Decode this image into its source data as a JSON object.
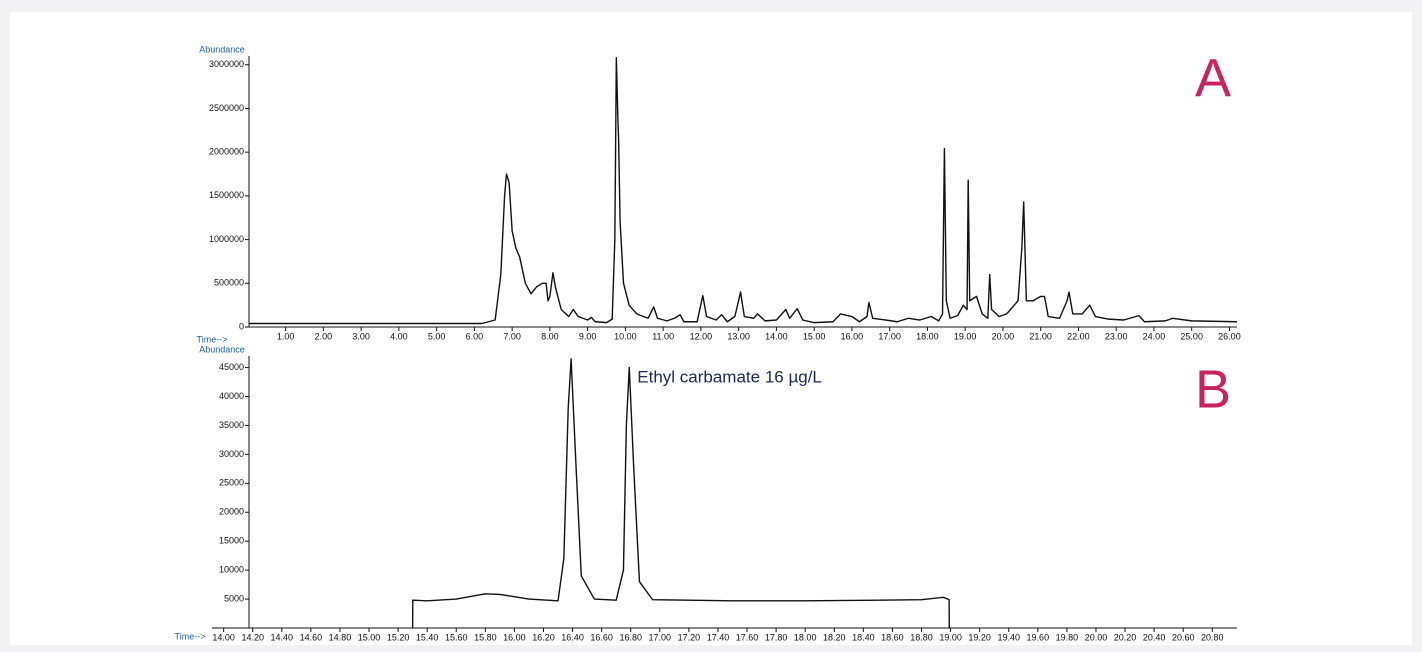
{
  "chart_data": [
    {
      "type": "line",
      "panel_label": "A",
      "y_axis_label": "Abundance",
      "x_axis_label": "Time-->",
      "color": "#111111",
      "xlim": [
        0.03,
        26.2
      ],
      "ylim": [
        0,
        3100000
      ],
      "yticks": [
        0,
        500000,
        1000000,
        1500000,
        2000000,
        2500000,
        3000000
      ],
      "xticks": [
        {
          "value": 1,
          "label": "1.00"
        },
        {
          "value": 2,
          "label": "2.00"
        },
        {
          "value": 3,
          "label": "3.00"
        },
        {
          "value": 4,
          "label": "4.00"
        },
        {
          "value": 5,
          "label": "5.00"
        },
        {
          "value": 6,
          "label": "6.00"
        },
        {
          "value": 7,
          "label": "7.00"
        },
        {
          "value": 8,
          "label": "8.00"
        },
        {
          "value": 9,
          "label": "9.00"
        },
        {
          "value": 10,
          "label": "10.00"
        },
        {
          "value": 11,
          "label": "11.00"
        },
        {
          "value": 12,
          "label": "12.00"
        },
        {
          "value": 13,
          "label": "13.00"
        },
        {
          "value": 14,
          "label": "14.00"
        },
        {
          "value": 15,
          "label": "15.00"
        },
        {
          "value": 16,
          "label": "16.00"
        },
        {
          "value": 17,
          "label": "17.00"
        },
        {
          "value": 18,
          "label": "18.00"
        },
        {
          "value": 19,
          "label": "19.00"
        },
        {
          "value": 20,
          "label": "20.00"
        },
        {
          "value": 21,
          "label": "21.00"
        },
        {
          "value": 22,
          "label": "22.00"
        },
        {
          "value": 23,
          "label": "23.00"
        },
        {
          "value": 24,
          "label": "24.00"
        },
        {
          "value": 25,
          "label": "25.00"
        },
        {
          "value": 26,
          "label": "26.00"
        }
      ],
      "x": [
        0.03,
        6.2,
        6.55,
        6.7,
        6.8,
        6.85,
        6.92,
        7.0,
        7.1,
        7.2,
        7.35,
        7.5,
        7.65,
        7.8,
        7.9,
        7.95,
        8.0,
        8.08,
        8.15,
        8.3,
        8.5,
        8.62,
        8.75,
        9.0,
        9.1,
        9.2,
        9.5,
        9.65,
        9.72,
        9.76,
        9.8,
        9.82,
        9.86,
        9.95,
        10.1,
        10.3,
        10.6,
        10.75,
        10.85,
        11.1,
        11.3,
        11.45,
        11.55,
        11.9,
        12.05,
        12.15,
        12.4,
        12.55,
        12.7,
        12.9,
        13.05,
        13.15,
        13.4,
        13.5,
        13.7,
        14.0,
        14.25,
        14.35,
        14.55,
        14.7,
        15.0,
        15.5,
        15.7,
        16.0,
        16.2,
        16.4,
        16.45,
        16.55,
        16.9,
        17.2,
        17.5,
        17.8,
        18.1,
        18.3,
        18.4,
        18.45,
        18.5,
        18.6,
        18.8,
        18.95,
        19.05,
        19.08,
        19.12,
        19.3,
        19.45,
        19.6,
        19.65,
        19.7,
        19.9,
        20.1,
        20.2,
        20.4,
        20.5,
        20.55,
        20.62,
        20.8,
        21.0,
        21.1,
        21.2,
        21.5,
        21.7,
        21.75,
        21.85,
        22.1,
        22.3,
        22.45,
        22.8,
        23.2,
        23.6,
        23.75,
        24.3,
        24.5,
        25.0,
        26.2
      ],
      "values": [
        40000,
        40000,
        80000,
        600000,
        1500000,
        1750000,
        1650000,
        1100000,
        900000,
        800000,
        500000,
        380000,
        460000,
        500000,
        500000,
        300000,
        350000,
        620000,
        450000,
        200000,
        120000,
        200000,
        120000,
        80000,
        110000,
        60000,
        50000,
        90000,
        1000000,
        3080000,
        2400000,
        2150000,
        1200000,
        500000,
        250000,
        150000,
        100000,
        230000,
        100000,
        70000,
        100000,
        140000,
        60000,
        60000,
        360000,
        120000,
        80000,
        140000,
        60000,
        120000,
        400000,
        120000,
        100000,
        150000,
        70000,
        80000,
        200000,
        100000,
        210000,
        80000,
        50000,
        60000,
        150000,
        120000,
        60000,
        120000,
        280000,
        100000,
        80000,
        60000,
        100000,
        80000,
        120000,
        70000,
        150000,
        2040000,
        300000,
        100000,
        130000,
        250000,
        200000,
        1680000,
        300000,
        350000,
        150000,
        100000,
        600000,
        200000,
        120000,
        150000,
        200000,
        300000,
        900000,
        1430000,
        300000,
        300000,
        350000,
        350000,
        120000,
        100000,
        300000,
        400000,
        150000,
        150000,
        250000,
        120000,
        90000,
        80000,
        130000,
        60000,
        70000,
        100000,
        70000,
        60000
      ]
    },
    {
      "type": "line",
      "panel_label": "B",
      "y_axis_label": "Abundance",
      "x_axis_label": "Time-->",
      "color": "#111111",
      "annotation": "Ethyl carbamate 16 µg/L",
      "xlim": [
        13.92,
        20.97
      ],
      "ylim": [
        0,
        47000
      ],
      "yticks": [
        5000,
        10000,
        15000,
        20000,
        25000,
        30000,
        35000,
        40000,
        45000
      ],
      "xticks": [
        {
          "value": 14,
          "label": "14.00"
        },
        {
          "value": 14.2,
          "label": "14.20"
        },
        {
          "value": 14.4,
          "label": "14.40"
        },
        {
          "value": 14.6,
          "label": "14.60"
        },
        {
          "value": 14.8,
          "label": "14.80"
        },
        {
          "value": 15,
          "label": "15.00"
        },
        {
          "value": 15.2,
          "label": "15.20"
        },
        {
          "value": 15.4,
          "label": "15.40"
        },
        {
          "value": 15.6,
          "label": "15.60"
        },
        {
          "value": 15.8,
          "label": "15.80"
        },
        {
          "value": 16,
          "label": "16.00"
        },
        {
          "value": 16.2,
          "label": "16.20"
        },
        {
          "value": 16.4,
          "label": "16.40"
        },
        {
          "value": 16.6,
          "label": "16.60"
        },
        {
          "value": 16.8,
          "label": "16.80"
        },
        {
          "value": 17,
          "label": "17.00"
        },
        {
          "value": 17.2,
          "label": "17.20"
        },
        {
          "value": 17.4,
          "label": "17.40"
        },
        {
          "value": 17.6,
          "label": "17.60"
        },
        {
          "value": 17.8,
          "label": "17.80"
        },
        {
          "value": 18,
          "label": "18.00"
        },
        {
          "value": 18.2,
          "label": "18.20"
        },
        {
          "value": 18.4,
          "label": "18.40"
        },
        {
          "value": 18.6,
          "label": "18.60"
        },
        {
          "value": 18.8,
          "label": "18.80"
        },
        {
          "value": 19,
          "label": "19.00"
        },
        {
          "value": 19.2,
          "label": "19.20"
        },
        {
          "value": 19.4,
          "label": "19.40"
        },
        {
          "value": 19.6,
          "label": "19.60"
        },
        {
          "value": 19.8,
          "label": "19.80"
        },
        {
          "value": 20,
          "label": "20.00"
        },
        {
          "value": 20.2,
          "label": "20.20"
        },
        {
          "value": 20.4,
          "label": "20.40"
        },
        {
          "value": 20.6,
          "label": "20.60"
        },
        {
          "value": 20.8,
          "label": "20.80"
        }
      ],
      "x": [
        15.3,
        15.301,
        15.4,
        15.6,
        15.8,
        15.9,
        16.1,
        16.3,
        16.34,
        16.37,
        16.39,
        16.42,
        16.46,
        16.55,
        16.7,
        16.75,
        16.77,
        16.79,
        16.82,
        16.86,
        16.95,
        17.5,
        18.0,
        18.5,
        18.8,
        18.95,
        18.99,
        18.991
      ],
      "values": [
        0,
        4800,
        4700,
        5000,
        5900,
        5800,
        5000,
        4700,
        12000,
        38000,
        46500,
        30000,
        9000,
        5000,
        4800,
        10000,
        35000,
        45000,
        28000,
        8000,
        4900,
        4700,
        4700,
        4800,
        4900,
        5300,
        4900,
        0
      ]
    }
  ]
}
